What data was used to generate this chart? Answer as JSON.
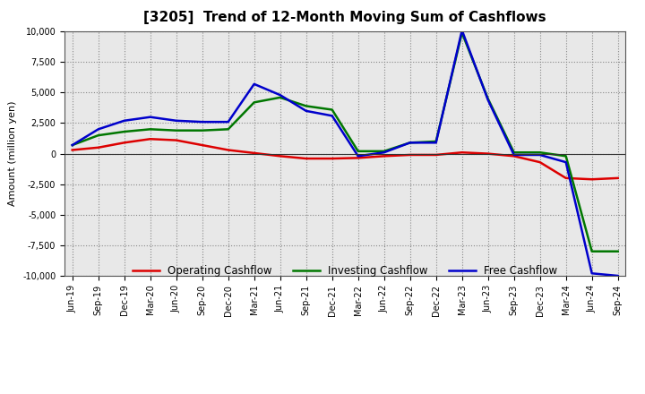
{
  "title": "[3205]  Trend of 12-Month Moving Sum of Cashflows",
  "ylabel": "Amount (million yen)",
  "ylim": [
    -10000,
    10000
  ],
  "yticks": [
    -10000,
    -7500,
    -5000,
    -2500,
    0,
    2500,
    5000,
    7500,
    10000
  ],
  "background_color": "#ffffff",
  "plot_bg_color": "#e8e8e8",
  "grid_color": "#888888",
  "x_labels": [
    "Jun-19",
    "Sep-19",
    "Dec-19",
    "Mar-20",
    "Jun-20",
    "Sep-20",
    "Dec-20",
    "Mar-21",
    "Jun-21",
    "Sep-21",
    "Dec-21",
    "Mar-22",
    "Jun-22",
    "Sep-22",
    "Dec-22",
    "Mar-23",
    "Jun-23",
    "Sep-23",
    "Dec-23",
    "Mar-24",
    "Jun-24",
    "Sep-24"
  ],
  "operating": [
    300,
    500,
    900,
    1200,
    1100,
    700,
    300,
    50,
    -200,
    -400,
    -400,
    -350,
    -200,
    -100,
    -100,
    100,
    0,
    -200,
    -700,
    -2000,
    -2100,
    -2000
  ],
  "investing": [
    700,
    1500,
    1800,
    2000,
    1900,
    1900,
    2000,
    4200,
    4600,
    3900,
    3600,
    200,
    200,
    900,
    1000,
    9900,
    4500,
    100,
    100,
    -200,
    -8000,
    -8000
  ],
  "free": [
    700,
    2000,
    2700,
    3000,
    2700,
    2600,
    2600,
    5700,
    4800,
    3500,
    3100,
    -200,
    100,
    900,
    900,
    10100,
    4400,
    -100,
    -100,
    -700,
    -9800,
    -10000
  ],
  "operating_color": "#dd0000",
  "investing_color": "#007700",
  "free_color": "#0000cc",
  "line_width": 1.8,
  "legend_labels": [
    "Operating Cashflow",
    "Investing Cashflow",
    "Free Cashflow"
  ],
  "title_fontsize": 11,
  "ylabel_fontsize": 8,
  "tick_fontsize": 7,
  "legend_fontsize": 8.5
}
